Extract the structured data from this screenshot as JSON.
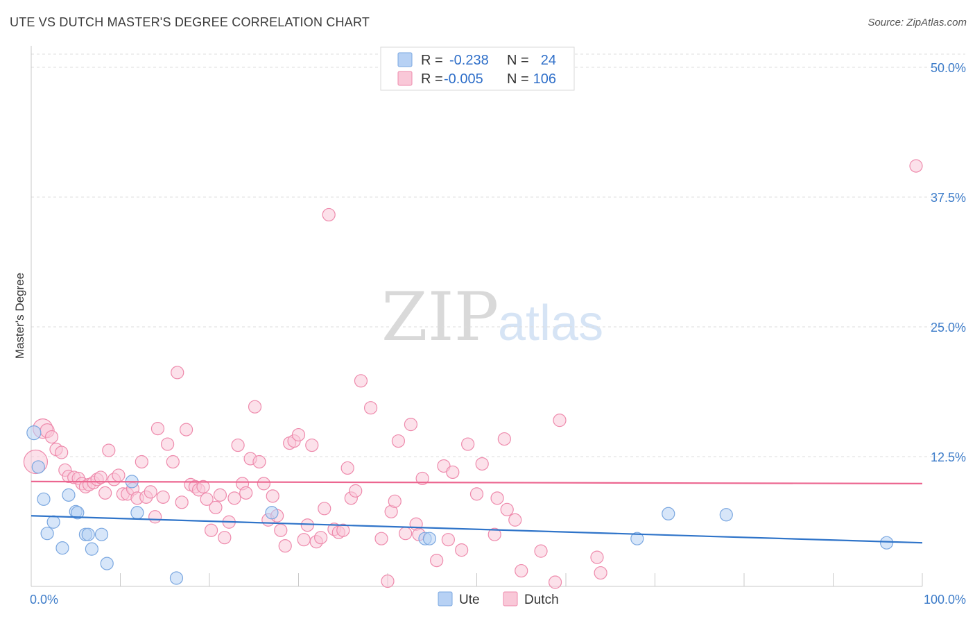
{
  "title": "UTE VS DUTCH MASTER'S DEGREE CORRELATION CHART",
  "source": "Source: ZipAtlas.com",
  "watermark": {
    "zip": "ZIP",
    "atlas": "atlas"
  },
  "colors": {
    "ute_fill": "#b7d1f4",
    "ute_stroke": "#7aa7e0",
    "ute_line": "#2f74c9",
    "dutch_fill": "#f9c8d8",
    "dutch_stroke": "#ee8aac",
    "dutch_line": "#ec6690",
    "grid": "#dcdcdc",
    "tick_text": "#3d7cc9"
  },
  "legend": {
    "rows": [
      {
        "r_label": "R =",
        "r_value": "-0.238",
        "n_label": "N =",
        "n_value": "24",
        "series": "ute"
      },
      {
        "r_label": "R =",
        "r_value": "-0.005",
        "n_label": "N =",
        "n_value": "106",
        "series": "dutch"
      }
    ]
  },
  "bottom_legend": [
    {
      "label": "Ute",
      "series": "ute"
    },
    {
      "label": "Dutch",
      "series": "dutch"
    }
  ],
  "chart_data": {
    "type": "scatter",
    "title": "UTE VS DUTCH MASTER'S DEGREE CORRELATION CHART",
    "xlabel": "",
    "ylabel": "Master's Degree",
    "xlim": [
      0,
      100
    ],
    "ylim": [
      0,
      50
    ],
    "x_tick_labels": [
      {
        "value": 0,
        "label": "0.0%"
      },
      {
        "value": 100,
        "label": "100.0%"
      }
    ],
    "y_ticks": [
      {
        "value": 12.5,
        "label": "12.5%"
      },
      {
        "value": 25,
        "label": "25.0%"
      },
      {
        "value": 37.5,
        "label": "37.5%"
      },
      {
        "value": 50,
        "label": "50.0%"
      }
    ],
    "grid": true,
    "legend_position": "top-center",
    "series": [
      {
        "name": "Ute",
        "key": "ute",
        "trend": {
          "x": [
            0,
            100
          ],
          "y": [
            6.8,
            4.2
          ]
        },
        "points": [
          [
            0.3,
            14.8,
            10
          ],
          [
            0.8,
            11.5,
            9
          ],
          [
            1.4,
            8.4,
            9
          ],
          [
            1.8,
            5.1,
            9
          ],
          [
            2.5,
            6.2,
            9
          ],
          [
            3.5,
            3.7,
            9
          ],
          [
            4.2,
            8.8,
            9
          ],
          [
            5.0,
            7.2,
            9
          ],
          [
            5.2,
            7.1,
            9
          ],
          [
            6.1,
            5.0,
            9
          ],
          [
            6.4,
            5.0,
            9
          ],
          [
            6.8,
            3.6,
            9
          ],
          [
            7.9,
            5.0,
            9
          ],
          [
            8.5,
            2.2,
            9
          ],
          [
            11.3,
            10.1,
            9
          ],
          [
            11.9,
            7.1,
            9
          ],
          [
            16.3,
            0.8,
            9
          ],
          [
            27.0,
            7.1,
            9
          ],
          [
            44.2,
            4.6,
            9
          ],
          [
            44.7,
            4.6,
            9
          ],
          [
            68.0,
            4.6,
            9
          ],
          [
            71.5,
            7.0,
            9
          ],
          [
            78.0,
            6.9,
            9
          ],
          [
            96.0,
            4.2,
            9
          ]
        ]
      },
      {
        "name": "Dutch",
        "key": "dutch",
        "trend": {
          "x": [
            0,
            100
          ],
          "y": [
            10.1,
            9.9
          ]
        },
        "points": [
          [
            0.5,
            12.0,
            17
          ],
          [
            1.3,
            15.2,
            14
          ],
          [
            1.8,
            15.0,
            10
          ],
          [
            2.3,
            14.4,
            9
          ],
          [
            2.8,
            13.2,
            9
          ],
          [
            3.4,
            12.9,
            9
          ],
          [
            3.8,
            11.2,
            9
          ],
          [
            4.2,
            10.6,
            9
          ],
          [
            4.8,
            10.5,
            9
          ],
          [
            5.3,
            10.4,
            9
          ],
          [
            5.7,
            9.9,
            9
          ],
          [
            6.1,
            9.6,
            9
          ],
          [
            6.5,
            9.8,
            9
          ],
          [
            7.0,
            10.0,
            9
          ],
          [
            7.4,
            10.3,
            9
          ],
          [
            7.8,
            10.5,
            9
          ],
          [
            8.3,
            9.0,
            9
          ],
          [
            8.7,
            13.1,
            9
          ],
          [
            9.3,
            10.3,
            9
          ],
          [
            9.8,
            10.7,
            9
          ],
          [
            10.3,
            8.9,
            9
          ],
          [
            10.8,
            8.9,
            9
          ],
          [
            11.4,
            9.4,
            9
          ],
          [
            11.9,
            8.5,
            9
          ],
          [
            12.4,
            12.0,
            9
          ],
          [
            12.9,
            8.6,
            9
          ],
          [
            13.4,
            9.1,
            9
          ],
          [
            13.9,
            6.7,
            9
          ],
          [
            14.2,
            15.2,
            9
          ],
          [
            14.8,
            8.6,
            9
          ],
          [
            15.3,
            13.7,
            9
          ],
          [
            15.9,
            12.0,
            9
          ],
          [
            16.4,
            20.6,
            9
          ],
          [
            16.9,
            8.1,
            9
          ],
          [
            17.4,
            15.1,
            9
          ],
          [
            17.9,
            9.8,
            9
          ],
          [
            18.4,
            9.6,
            9
          ],
          [
            18.8,
            9.3,
            9
          ],
          [
            19.3,
            9.6,
            9
          ],
          [
            19.7,
            8.4,
            9
          ],
          [
            20.2,
            5.4,
            9
          ],
          [
            20.7,
            7.6,
            9
          ],
          [
            21.2,
            8.8,
            9
          ],
          [
            21.7,
            4.7,
            9
          ],
          [
            22.2,
            6.2,
            9
          ],
          [
            22.8,
            8.5,
            9
          ],
          [
            23.2,
            13.6,
            9
          ],
          [
            23.7,
            9.9,
            9
          ],
          [
            24.1,
            9.0,
            9
          ],
          [
            24.6,
            12.3,
            9
          ],
          [
            25.1,
            17.3,
            9
          ],
          [
            25.6,
            12.0,
            9
          ],
          [
            26.1,
            9.9,
            9
          ],
          [
            26.6,
            6.4,
            9
          ],
          [
            27.1,
            8.7,
            9
          ],
          [
            27.6,
            6.8,
            9
          ],
          [
            28.0,
            5.4,
            9
          ],
          [
            28.5,
            3.9,
            9
          ],
          [
            29.0,
            13.8,
            9
          ],
          [
            29.5,
            14.0,
            9
          ],
          [
            30.0,
            14.6,
            9
          ],
          [
            30.6,
            4.5,
            9
          ],
          [
            31.0,
            5.9,
            9
          ],
          [
            31.5,
            13.6,
            9
          ],
          [
            32.0,
            4.3,
            9
          ],
          [
            32.5,
            4.7,
            9
          ],
          [
            32.9,
            7.5,
            9
          ],
          [
            33.4,
            35.8,
            9
          ],
          [
            34.0,
            5.5,
            9
          ],
          [
            34.5,
            5.2,
            9
          ],
          [
            35.0,
            5.4,
            9
          ],
          [
            35.5,
            11.4,
            9
          ],
          [
            35.9,
            8.5,
            9
          ],
          [
            36.4,
            9.2,
            9
          ],
          [
            37.0,
            19.8,
            9
          ],
          [
            38.1,
            17.2,
            9
          ],
          [
            39.3,
            4.6,
            9
          ],
          [
            40.0,
            0.5,
            9
          ],
          [
            40.4,
            7.2,
            9
          ],
          [
            40.8,
            8.2,
            9
          ],
          [
            41.2,
            14.0,
            9
          ],
          [
            42.0,
            5.1,
            9
          ],
          [
            42.6,
            15.6,
            9
          ],
          [
            43.2,
            6.0,
            9
          ],
          [
            43.5,
            5.0,
            9
          ],
          [
            43.9,
            10.4,
            9
          ],
          [
            45.5,
            2.5,
            9
          ],
          [
            46.3,
            11.6,
            9
          ],
          [
            46.8,
            4.5,
            9
          ],
          [
            47.3,
            11.0,
            9
          ],
          [
            48.3,
            3.5,
            9
          ],
          [
            49.0,
            13.7,
            9
          ],
          [
            50.0,
            8.9,
            9
          ],
          [
            50.6,
            11.8,
            9
          ],
          [
            52.0,
            5.0,
            9
          ],
          [
            52.3,
            8.5,
            9
          ],
          [
            53.1,
            14.2,
            9
          ],
          [
            53.4,
            7.4,
            9
          ],
          [
            54.3,
            6.4,
            9
          ],
          [
            55.0,
            1.5,
            9
          ],
          [
            57.2,
            3.4,
            9
          ],
          [
            58.8,
            0.4,
            9
          ],
          [
            59.3,
            16.0,
            9
          ],
          [
            63.5,
            2.8,
            9
          ],
          [
            63.9,
            1.3,
            9
          ],
          [
            99.3,
            40.5,
            9
          ]
        ]
      }
    ]
  }
}
